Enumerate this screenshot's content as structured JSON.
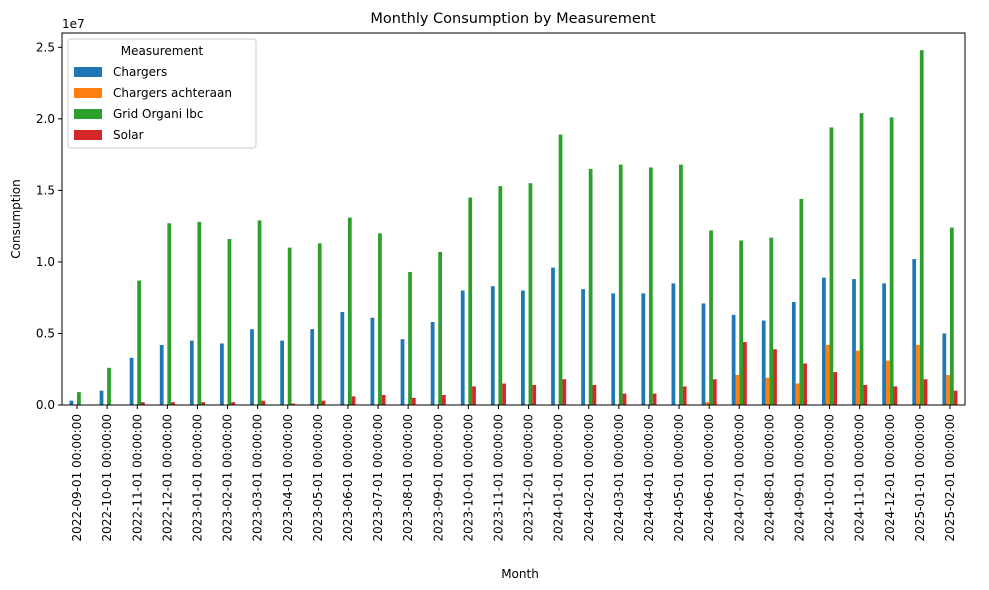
{
  "chart_data": {
    "type": "bar",
    "title": "Monthly Consumption by Measurement",
    "xlabel": "Month",
    "ylabel": "Consumption",
    "offset_label": "1e7",
    "ylim": [
      0,
      2.6
    ],
    "yticks": [
      0.0,
      0.5,
      1.0,
      1.5,
      2.0,
      2.5
    ],
    "ytick_labels": [
      "0.0",
      "0.5",
      "1.0",
      "1.5",
      "2.0",
      "2.5"
    ],
    "legend": {
      "title": "Measurement",
      "position": "upper-left"
    },
    "categories": [
      "2022-09-01 00:00:00",
      "2022-10-01 00:00:00",
      "2022-11-01 00:00:00",
      "2022-12-01 00:00:00",
      "2023-01-01 00:00:00",
      "2023-02-01 00:00:00",
      "2023-03-01 00:00:00",
      "2023-04-01 00:00:00",
      "2023-05-01 00:00:00",
      "2023-06-01 00:00:00",
      "2023-07-01 00:00:00",
      "2023-08-01 00:00:00",
      "2023-09-01 00:00:00",
      "2023-10-01 00:00:00",
      "2023-11-01 00:00:00",
      "2023-12-01 00:00:00",
      "2024-01-01 00:00:00",
      "2024-02-01 00:00:00",
      "2024-03-01 00:00:00",
      "2024-04-01 00:00:00",
      "2024-05-01 00:00:00",
      "2024-06-01 00:00:00",
      "2024-07-01 00:00:00",
      "2024-08-01 00:00:00",
      "2024-09-01 00:00:00",
      "2024-10-01 00:00:00",
      "2024-11-01 00:00:00",
      "2024-12-01 00:00:00",
      "2025-01-01 00:00:00",
      "2025-02-01 00:00:00"
    ],
    "series": [
      {
        "name": "Chargers",
        "color": "#1f77b4",
        "values": [
          0.03,
          0.1,
          0.33,
          0.42,
          0.45,
          0.43,
          0.53,
          0.45,
          0.53,
          0.65,
          0.61,
          0.46,
          0.58,
          0.8,
          0.83,
          0.8,
          0.96,
          0.81,
          0.78,
          0.78,
          0.85,
          0.71,
          0.63,
          0.59,
          0.72,
          0.89,
          0.88,
          0.85,
          1.02,
          0.5
        ]
      },
      {
        "name": "Chargers achteraan",
        "color": "#ff7f0e",
        "values": [
          0,
          0,
          0,
          0,
          0,
          0,
          0,
          0,
          0,
          0,
          0,
          0,
          0,
          0,
          0,
          0,
          0,
          0,
          0,
          0,
          0,
          0.02,
          0.21,
          0.19,
          0.15,
          0.42,
          0.38,
          0.31,
          0.42,
          0.21
        ]
      },
      {
        "name": "Grid Organi lbc",
        "color": "#2ca02c",
        "values": [
          0.09,
          0.26,
          0.87,
          1.27,
          1.28,
          1.16,
          1.29,
          1.1,
          1.13,
          1.31,
          1.2,
          0.93,
          1.07,
          1.45,
          1.53,
          1.55,
          1.89,
          1.65,
          1.68,
          1.66,
          1.68,
          1.22,
          1.15,
          1.17,
          1.44,
          1.94,
          2.04,
          2.01,
          2.48,
          1.24
        ]
      },
      {
        "name": "Solar",
        "color": "#d62728",
        "values": [
          0,
          0,
          0.02,
          0.02,
          0.02,
          0.02,
          0.03,
          0.01,
          0.03,
          0.06,
          0.07,
          0.05,
          0.07,
          0.13,
          0.15,
          0.14,
          0.18,
          0.14,
          0.08,
          0.08,
          0.13,
          0.18,
          0.44,
          0.39,
          0.29,
          0.23,
          0.14,
          0.13,
          0.18,
          0.1
        ]
      }
    ]
  }
}
